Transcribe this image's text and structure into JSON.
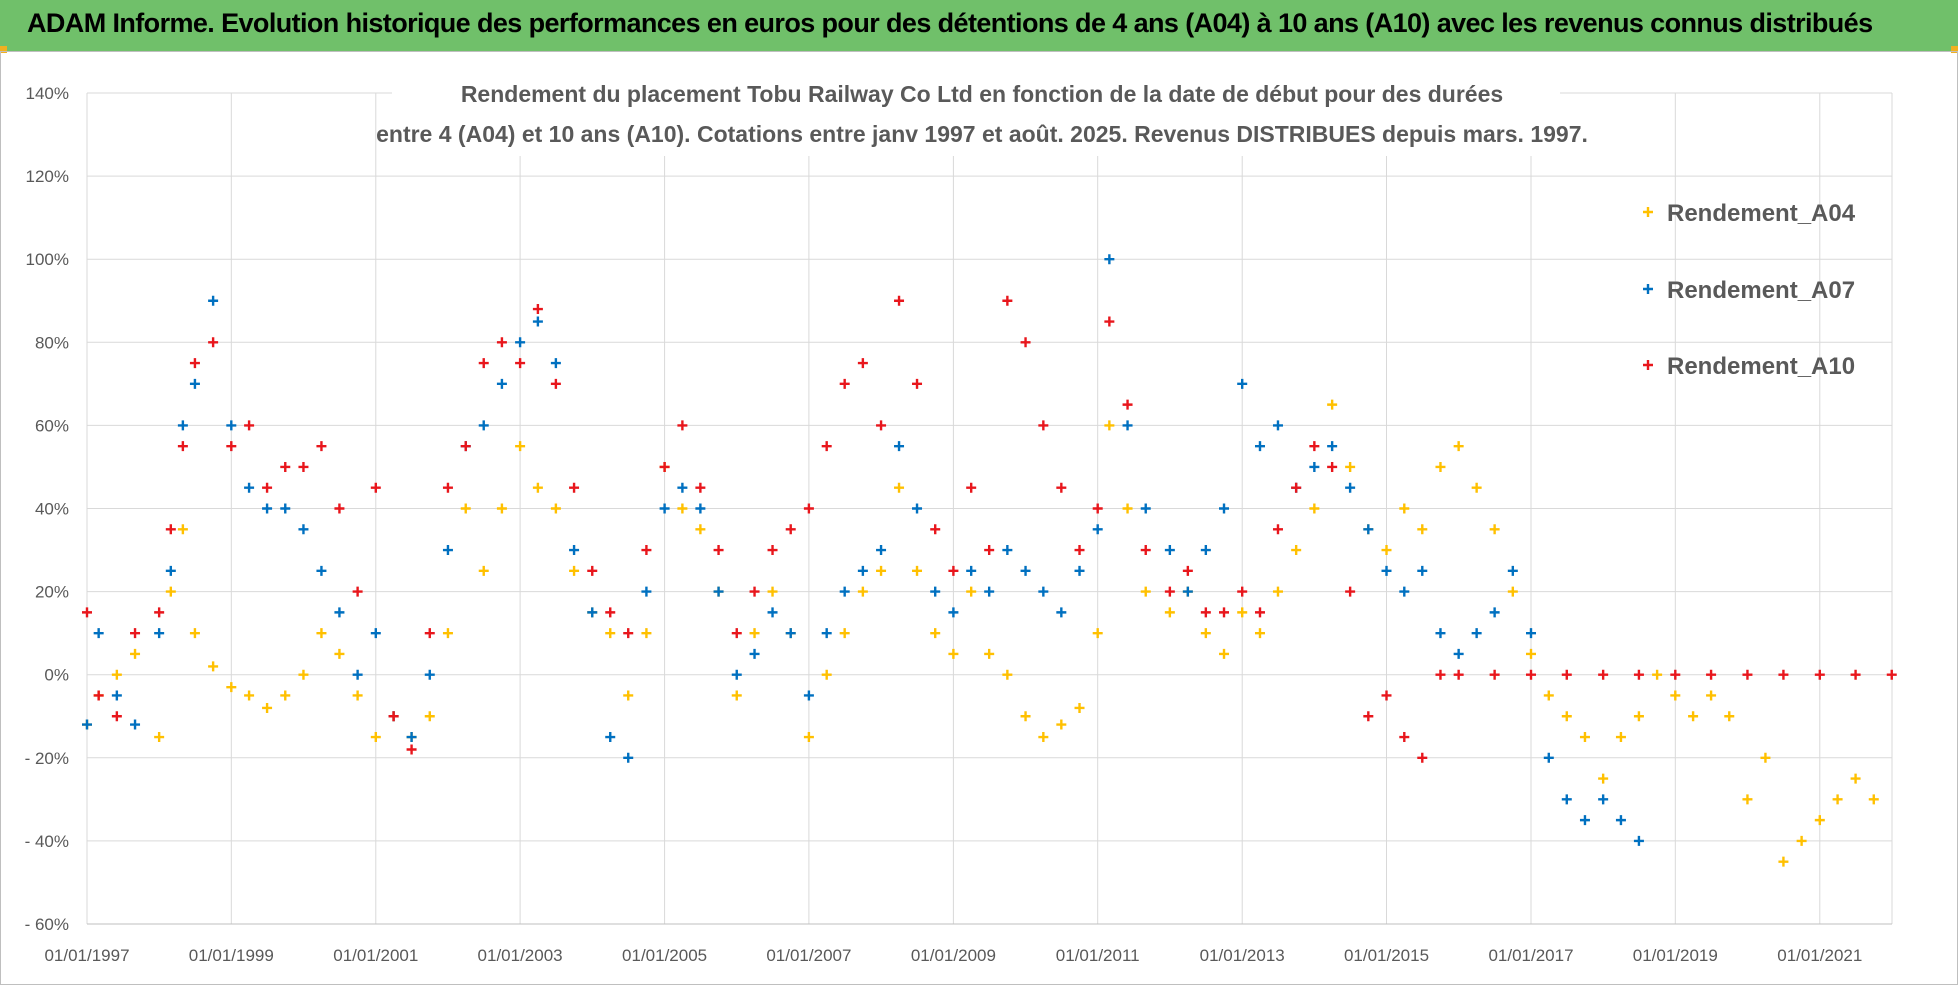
{
  "header": {
    "title": "ADAM Informe. Evolution historique des performances en euros pour des détentions de 4 ans (A04) à 10 ans (A10) avec les revenus connus distribués"
  },
  "chart_data": {
    "type": "scatter",
    "title_line1": "Rendement du placement Tobu Railway Co Ltd en fonction de la date de début pour des durées",
    "title_line2": "entre 4 (A04) et 10 ans (A10). Cotations entre janv 1997 et août. 2025. Revenus DISTRIBUES depuis mars. 1997.",
    "xlabel": "",
    "ylabel": "",
    "x_range": [
      "1997-01-01",
      "2021-12-31"
    ],
    "ylim": [
      -60,
      140
    ],
    "y_unit": "%",
    "y_ticks": [
      "140%",
      "120%",
      "100%",
      "80%",
      "60%",
      "40%",
      "20%",
      "0%",
      "- 20%",
      "- 40%",
      "- 60%"
    ],
    "x_ticks": [
      "01/01/1997",
      "01/01/1999",
      "01/01/2001",
      "01/01/2003",
      "01/01/2005",
      "01/01/2007",
      "01/01/2009",
      "01/01/2011",
      "01/01/2013",
      "01/01/2015",
      "01/01/2017",
      "01/01/2019",
      "01/01/2021"
    ],
    "grid": true,
    "legend_position": "top-right",
    "marker": "+",
    "series": [
      {
        "name": "Rendement_A04",
        "color": "#ffc000",
        "points": [
          [
            "1997-01-01",
            -12
          ],
          [
            "1997-03-01",
            -5
          ],
          [
            "1997-06-01",
            0
          ],
          [
            "1997-09-01",
            5
          ],
          [
            "1998-01-01",
            -15
          ],
          [
            "1998-03-01",
            20
          ],
          [
            "1998-05-01",
            35
          ],
          [
            "1998-07-01",
            10
          ],
          [
            "1998-10-01",
            2
          ],
          [
            "1999-01-01",
            -3
          ],
          [
            "1999-04-01",
            -5
          ],
          [
            "1999-07-01",
            -8
          ],
          [
            "1999-10-01",
            -5
          ],
          [
            "2000-01-01",
            0
          ],
          [
            "2000-04-01",
            10
          ],
          [
            "2000-07-01",
            5
          ],
          [
            "2000-10-01",
            -5
          ],
          [
            "2001-01-01",
            -15
          ],
          [
            "2001-04-01",
            -10
          ],
          [
            "2001-07-01",
            -15
          ],
          [
            "2001-10-01",
            -10
          ],
          [
            "2002-01-01",
            10
          ],
          [
            "2002-04-01",
            40
          ],
          [
            "2002-07-01",
            25
          ],
          [
            "2002-10-01",
            40
          ],
          [
            "2003-01-01",
            55
          ],
          [
            "2003-04-01",
            45
          ],
          [
            "2003-07-01",
            40
          ],
          [
            "2003-10-01",
            25
          ],
          [
            "2004-01-01",
            15
          ],
          [
            "2004-04-01",
            10
          ],
          [
            "2004-07-01",
            -5
          ],
          [
            "2004-10-01",
            10
          ],
          [
            "2005-01-01",
            50
          ],
          [
            "2005-04-01",
            40
          ],
          [
            "2005-07-01",
            35
          ],
          [
            "2005-10-01",
            20
          ],
          [
            "2006-01-01",
            -5
          ],
          [
            "2006-04-01",
            10
          ],
          [
            "2006-07-01",
            20
          ],
          [
            "2006-10-01",
            10
          ],
          [
            "2007-01-01",
            -15
          ],
          [
            "2007-04-01",
            0
          ],
          [
            "2007-07-01",
            10
          ],
          [
            "2007-10-01",
            20
          ],
          [
            "2008-01-01",
            25
          ],
          [
            "2008-04-01",
            45
          ],
          [
            "2008-07-01",
            25
          ],
          [
            "2008-10-01",
            10
          ],
          [
            "2009-01-01",
            5
          ],
          [
            "2009-04-01",
            20
          ],
          [
            "2009-07-01",
            5
          ],
          [
            "2009-10-01",
            0
          ],
          [
            "2010-01-01",
            -10
          ],
          [
            "2010-04-01",
            -15
          ],
          [
            "2010-07-01",
            -12
          ],
          [
            "2010-10-01",
            -8
          ],
          [
            "2011-01-01",
            10
          ],
          [
            "2011-03-01",
            60
          ],
          [
            "2011-06-01",
            40
          ],
          [
            "2011-09-01",
            20
          ],
          [
            "2012-01-01",
            15
          ],
          [
            "2012-04-01",
            20
          ],
          [
            "2012-07-01",
            10
          ],
          [
            "2012-10-01",
            5
          ],
          [
            "2013-01-01",
            15
          ],
          [
            "2013-04-01",
            10
          ],
          [
            "2013-07-01",
            20
          ],
          [
            "2013-10-01",
            30
          ],
          [
            "2014-01-01",
            40
          ],
          [
            "2014-04-01",
            65
          ],
          [
            "2014-07-01",
            50
          ],
          [
            "2014-10-01",
            35
          ],
          [
            "2015-01-01",
            30
          ],
          [
            "2015-04-01",
            40
          ],
          [
            "2015-07-01",
            35
          ],
          [
            "2015-10-01",
            50
          ],
          [
            "2016-01-01",
            55
          ],
          [
            "2016-04-01",
            45
          ],
          [
            "2016-07-01",
            35
          ],
          [
            "2016-10-01",
            20
          ],
          [
            "2017-01-01",
            5
          ],
          [
            "2017-04-01",
            -5
          ],
          [
            "2017-07-01",
            -10
          ],
          [
            "2017-10-01",
            -15
          ],
          [
            "2018-01-01",
            -25
          ],
          [
            "2018-04-01",
            -15
          ],
          [
            "2018-07-01",
            -10
          ],
          [
            "2018-10-01",
            0
          ],
          [
            "2019-01-01",
            -5
          ],
          [
            "2019-04-01",
            -10
          ],
          [
            "2019-07-01",
            -5
          ],
          [
            "2019-10-01",
            -10
          ],
          [
            "2020-01-01",
            -30
          ],
          [
            "2020-04-01",
            -20
          ],
          [
            "2020-07-01",
            -45
          ],
          [
            "2020-10-01",
            -40
          ],
          [
            "2021-01-01",
            -35
          ],
          [
            "2021-04-01",
            -30
          ],
          [
            "2021-07-01",
            -25
          ],
          [
            "2021-10-01",
            -30
          ]
        ]
      },
      {
        "name": "Rendement_A07",
        "color": "#0070c0",
        "points": [
          [
            "1997-01-01",
            -12
          ],
          [
            "1997-03-01",
            10
          ],
          [
            "1997-06-01",
            -5
          ],
          [
            "1997-09-01",
            -12
          ],
          [
            "1998-01-01",
            10
          ],
          [
            "1998-03-01",
            25
          ],
          [
            "1998-05-01",
            60
          ],
          [
            "1998-07-01",
            70
          ],
          [
            "1998-10-01",
            90
          ],
          [
            "1999-01-01",
            60
          ],
          [
            "1999-04-01",
            45
          ],
          [
            "1999-07-01",
            40
          ],
          [
            "1999-10-01",
            40
          ],
          [
            "2000-01-01",
            35
          ],
          [
            "2000-04-01",
            25
          ],
          [
            "2000-07-01",
            15
          ],
          [
            "2000-10-01",
            0
          ],
          [
            "2001-01-01",
            10
          ],
          [
            "2001-04-01",
            -10
          ],
          [
            "2001-07-01",
            -15
          ],
          [
            "2001-10-01",
            0
          ],
          [
            "2002-01-01",
            30
          ],
          [
            "2002-04-01",
            55
          ],
          [
            "2002-07-01",
            60
          ],
          [
            "2002-10-01",
            70
          ],
          [
            "2003-01-01",
            80
          ],
          [
            "2003-04-01",
            85
          ],
          [
            "2003-07-01",
            75
          ],
          [
            "2003-10-01",
            30
          ],
          [
            "2004-01-01",
            15
          ],
          [
            "2004-04-01",
            -15
          ],
          [
            "2004-07-01",
            -20
          ],
          [
            "2004-10-01",
            20
          ],
          [
            "2005-01-01",
            40
          ],
          [
            "2005-04-01",
            45
          ],
          [
            "2005-07-01",
            40
          ],
          [
            "2005-10-01",
            20
          ],
          [
            "2006-01-01",
            0
          ],
          [
            "2006-04-01",
            5
          ],
          [
            "2006-07-01",
            15
          ],
          [
            "2006-10-01",
            10
          ],
          [
            "2007-01-01",
            -5
          ],
          [
            "2007-04-01",
            10
          ],
          [
            "2007-07-01",
            20
          ],
          [
            "2007-10-01",
            25
          ],
          [
            "2008-01-01",
            30
          ],
          [
            "2008-04-01",
            55
          ],
          [
            "2008-07-01",
            40
          ],
          [
            "2008-10-01",
            20
          ],
          [
            "2009-01-01",
            15
          ],
          [
            "2009-04-01",
            25
          ],
          [
            "2009-07-01",
            20
          ],
          [
            "2009-10-01",
            30
          ],
          [
            "2010-01-01",
            25
          ],
          [
            "2010-04-01",
            20
          ],
          [
            "2010-07-01",
            15
          ],
          [
            "2010-10-01",
            25
          ],
          [
            "2011-01-01",
            35
          ],
          [
            "2011-03-01",
            100
          ],
          [
            "2011-06-01",
            60
          ],
          [
            "2011-09-01",
            40
          ],
          [
            "2012-01-01",
            30
          ],
          [
            "2012-04-01",
            20
          ],
          [
            "2012-07-01",
            30
          ],
          [
            "2012-10-01",
            40
          ],
          [
            "2013-01-01",
            70
          ],
          [
            "2013-04-01",
            55
          ],
          [
            "2013-07-01",
            60
          ],
          [
            "2013-10-01",
            45
          ],
          [
            "2014-01-01",
            50
          ],
          [
            "2014-04-01",
            55
          ],
          [
            "2014-07-01",
            45
          ],
          [
            "2014-10-01",
            35
          ],
          [
            "2015-01-01",
            25
          ],
          [
            "2015-04-01",
            20
          ],
          [
            "2015-07-01",
            25
          ],
          [
            "2015-10-01",
            10
          ],
          [
            "2016-01-01",
            5
          ],
          [
            "2016-04-01",
            10
          ],
          [
            "2016-07-01",
            15
          ],
          [
            "2016-10-01",
            25
          ],
          [
            "2017-01-01",
            10
          ],
          [
            "2017-04-01",
            -20
          ],
          [
            "2017-07-01",
            -30
          ],
          [
            "2017-10-01",
            -35
          ],
          [
            "2018-01-01",
            -30
          ],
          [
            "2018-04-01",
            -35
          ],
          [
            "2018-07-01",
            -40
          ]
        ]
      },
      {
        "name": "Rendement_A10",
        "color": "#e8161c",
        "points": [
          [
            "1997-01-01",
            15
          ],
          [
            "1997-03-01",
            -5
          ],
          [
            "1997-06-01",
            -10
          ],
          [
            "1997-09-01",
            10
          ],
          [
            "1998-01-01",
            15
          ],
          [
            "1998-03-01",
            35
          ],
          [
            "1998-05-01",
            55
          ],
          [
            "1998-07-01",
            75
          ],
          [
            "1998-10-01",
            80
          ],
          [
            "1999-01-01",
            55
          ],
          [
            "1999-04-01",
            60
          ],
          [
            "1999-07-01",
            45
          ],
          [
            "1999-10-01",
            50
          ],
          [
            "2000-01-01",
            50
          ],
          [
            "2000-04-01",
            55
          ],
          [
            "2000-07-01",
            40
          ],
          [
            "2000-10-01",
            20
          ],
          [
            "2001-01-01",
            45
          ],
          [
            "2001-04-01",
            -10
          ],
          [
            "2001-07-01",
            -18
          ],
          [
            "2001-10-01",
            10
          ],
          [
            "2002-01-01",
            45
          ],
          [
            "2002-04-01",
            55
          ],
          [
            "2002-07-01",
            75
          ],
          [
            "2002-10-01",
            80
          ],
          [
            "2003-01-01",
            75
          ],
          [
            "2003-04-01",
            88
          ],
          [
            "2003-07-01",
            70
          ],
          [
            "2003-10-01",
            45
          ],
          [
            "2004-01-01",
            25
          ],
          [
            "2004-04-01",
            15
          ],
          [
            "2004-07-01",
            10
          ],
          [
            "2004-10-01",
            30
          ],
          [
            "2005-01-01",
            50
          ],
          [
            "2005-04-01",
            60
          ],
          [
            "2005-07-01",
            45
          ],
          [
            "2005-10-01",
            30
          ],
          [
            "2006-01-01",
            10
          ],
          [
            "2006-04-01",
            20
          ],
          [
            "2006-07-01",
            30
          ],
          [
            "2006-10-01",
            35
          ],
          [
            "2007-01-01",
            40
          ],
          [
            "2007-04-01",
            55
          ],
          [
            "2007-07-01",
            70
          ],
          [
            "2007-10-01",
            75
          ],
          [
            "2008-01-01",
            60
          ],
          [
            "2008-04-01",
            90
          ],
          [
            "2008-07-01",
            70
          ],
          [
            "2008-10-01",
            35
          ],
          [
            "2009-01-01",
            25
          ],
          [
            "2009-04-01",
            45
          ],
          [
            "2009-07-01",
            30
          ],
          [
            "2009-10-01",
            90
          ],
          [
            "2010-01-01",
            80
          ],
          [
            "2010-04-01",
            60
          ],
          [
            "2010-07-01",
            45
          ],
          [
            "2010-10-01",
            30
          ],
          [
            "2011-01-01",
            40
          ],
          [
            "2011-03-01",
            85
          ],
          [
            "2011-06-01",
            65
          ],
          [
            "2011-09-01",
            30
          ],
          [
            "2012-01-01",
            20
          ],
          [
            "2012-04-01",
            25
          ],
          [
            "2012-07-01",
            15
          ],
          [
            "2012-10-01",
            15
          ],
          [
            "2013-01-01",
            20
          ],
          [
            "2013-04-01",
            15
          ],
          [
            "2013-07-01",
            35
          ],
          [
            "2013-10-01",
            45
          ],
          [
            "2014-01-01",
            55
          ],
          [
            "2014-04-01",
            50
          ],
          [
            "2014-07-01",
            20
          ],
          [
            "2014-10-01",
            -10
          ],
          [
            "2015-01-01",
            -5
          ],
          [
            "2015-04-01",
            -15
          ],
          [
            "2015-07-01",
            -20
          ],
          [
            "2015-10-01",
            0
          ],
          [
            "2016-01-01",
            0
          ],
          [
            "2016-07-01",
            0
          ],
          [
            "2017-01-01",
            0
          ],
          [
            "2017-07-01",
            0
          ],
          [
            "2018-01-01",
            0
          ],
          [
            "2018-07-01",
            0
          ],
          [
            "2019-01-01",
            0
          ],
          [
            "2019-07-01",
            0
          ],
          [
            "2020-01-01",
            0
          ],
          [
            "2020-07-01",
            0
          ],
          [
            "2021-01-01",
            0
          ],
          [
            "2021-07-01",
            0
          ],
          [
            "2021-12-31",
            0
          ]
        ]
      }
    ]
  }
}
